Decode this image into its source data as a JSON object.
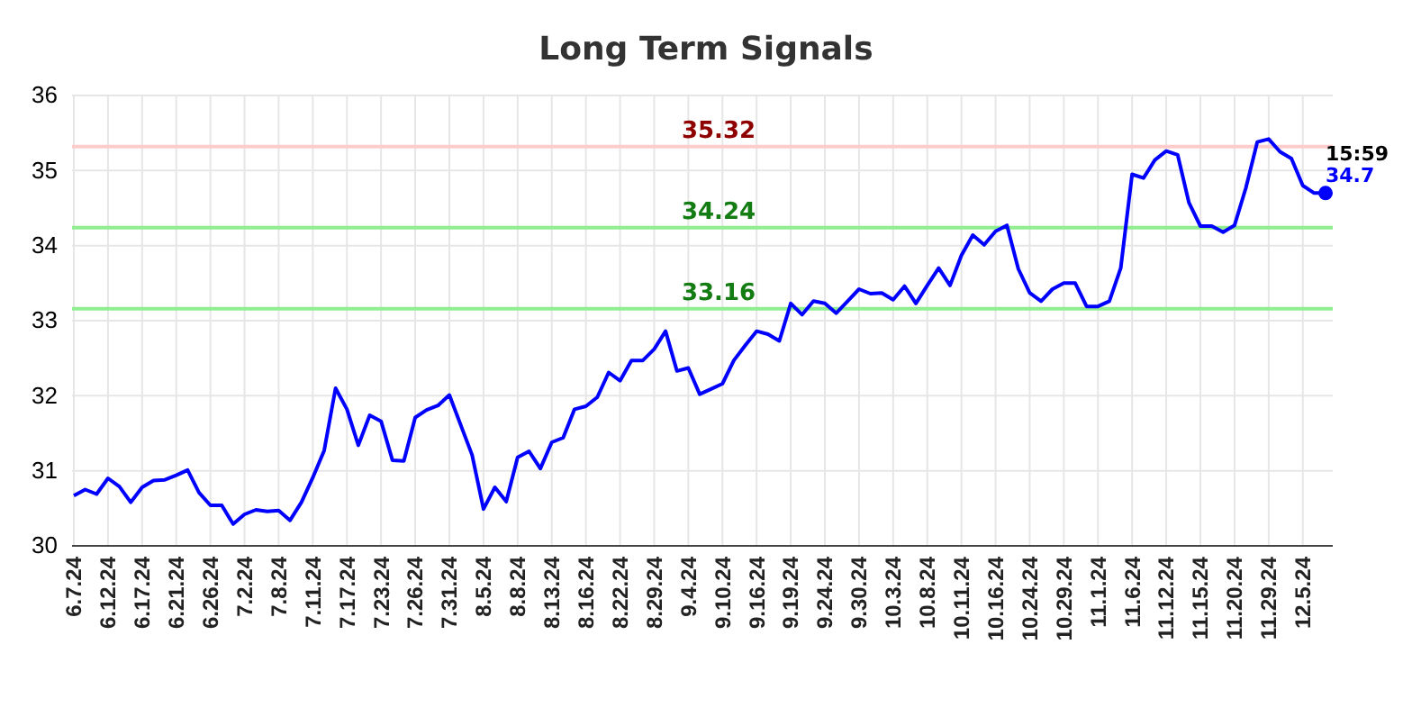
{
  "chart_data": {
    "type": "line",
    "title": "Long Term Signals",
    "categories": [
      "6.7.24",
      null,
      null,
      "6.12.24",
      null,
      null,
      "6.17.24",
      null,
      null,
      "6.21.24",
      null,
      null,
      "6.26.24",
      null,
      null,
      "7.2.24",
      null,
      null,
      "7.8.24",
      null,
      null,
      "7.11.24",
      null,
      null,
      "7.17.24",
      null,
      null,
      "7.23.24",
      null,
      null,
      "7.26.24",
      null,
      null,
      "7.31.24",
      null,
      null,
      "8.5.24",
      null,
      null,
      "8.8.24",
      null,
      null,
      "8.13.24",
      null,
      null,
      "8.16.24",
      null,
      null,
      "8.22.24",
      null,
      null,
      "8.29.24",
      null,
      null,
      "9.4.24",
      null,
      null,
      "9.10.24",
      null,
      null,
      "9.16.24",
      null,
      null,
      "9.19.24",
      null,
      null,
      "9.24.24",
      null,
      null,
      "9.30.24",
      null,
      null,
      "10.3.24",
      null,
      null,
      "10.8.24",
      null,
      null,
      "10.11.24",
      null,
      null,
      "10.16.24",
      null,
      null,
      "10.24.24",
      null,
      null,
      "10.29.24",
      null,
      null,
      "11.1.24",
      null,
      null,
      "11.6.24",
      null,
      null,
      "11.12.24",
      null,
      null,
      "11.15.24",
      null,
      null,
      "11.20.24",
      null,
      null,
      "11.29.24",
      null,
      null,
      "12.5.24",
      null,
      null
    ],
    "series": [
      {
        "color": "#0000ff",
        "values": [
          30.67,
          30.75,
          30.69,
          30.9,
          30.79,
          30.58,
          30.78,
          30.87,
          30.88,
          30.94,
          31.01,
          30.71,
          30.54,
          30.54,
          30.29,
          30.42,
          30.48,
          30.46,
          30.47,
          30.34,
          30.58,
          30.91,
          31.27,
          32.1,
          31.82,
          31.34,
          31.74,
          31.66,
          31.14,
          31.13,
          31.71,
          31.81,
          31.87,
          32.01,
          31.61,
          31.21,
          30.49,
          30.78,
          30.59,
          31.18,
          31.26,
          31.03,
          31.38,
          31.44,
          31.82,
          31.86,
          31.98,
          32.31,
          32.2,
          32.47,
          32.47,
          32.62,
          32.86,
          32.33,
          32.37,
          32.02,
          32.09,
          32.16,
          32.47,
          32.67,
          32.86,
          32.82,
          32.73,
          33.23,
          33.08,
          33.26,
          33.23,
          33.1,
          33.26,
          33.42,
          33.36,
          33.37,
          33.28,
          33.46,
          33.23,
          33.47,
          33.7,
          33.47,
          33.87,
          34.14,
          34.01,
          34.19,
          34.27,
          33.69,
          33.37,
          33.26,
          33.42,
          33.5,
          33.5,
          33.19,
          33.19,
          33.26,
          33.7,
          34.95,
          34.9,
          35.14,
          35.26,
          35.21,
          34.57,
          34.26,
          34.26,
          34.18,
          34.27,
          34.77,
          35.38,
          35.42,
          35.25,
          35.16,
          34.8,
          34.7,
          34.7
        ]
      }
    ],
    "ylim": [
      30,
      36
    ],
    "yticks": [
      30,
      31,
      32,
      33,
      34,
      35,
      36
    ],
    "grid": true,
    "marker": "none",
    "line_style": "solid",
    "ref_lines": [
      {
        "axis": "y",
        "value": 35.32,
        "label": "35.32",
        "color": "#ffcccc"
      },
      {
        "axis": "y",
        "value": 34.24,
        "label": "34.24",
        "color": "#90ee90"
      },
      {
        "axis": "y",
        "value": 33.16,
        "label": "33.16",
        "color": "#90ee90"
      }
    ],
    "annotations": [
      "15:59",
      "34.7"
    ]
  }
}
